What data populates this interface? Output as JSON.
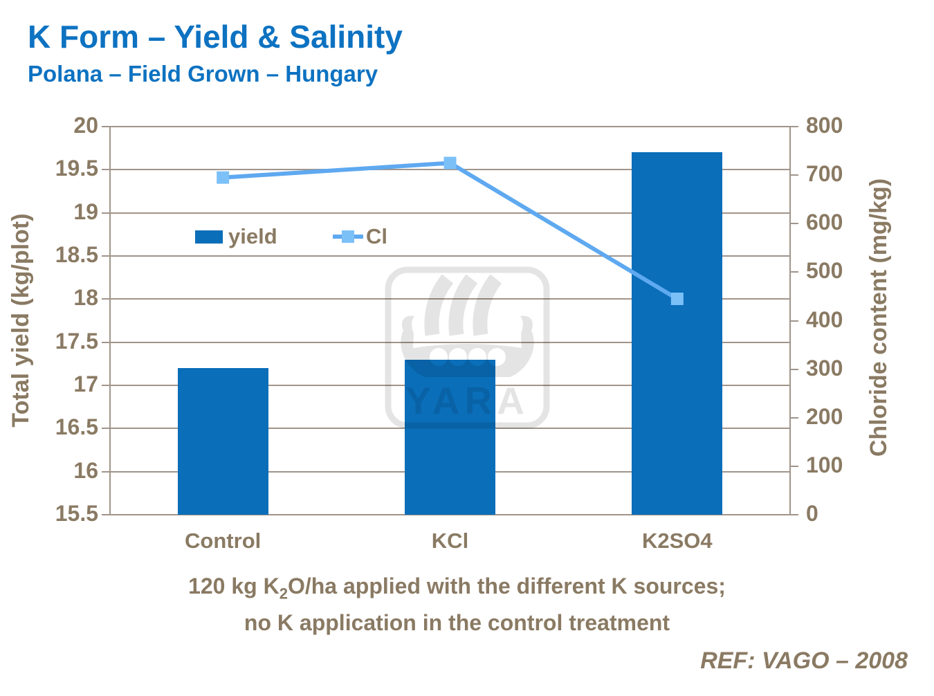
{
  "header": {
    "title": "K Form – Yield & Salinity",
    "subtitle": "Polana – Field Grown – Hungary"
  },
  "chart_data": {
    "type": "bar+line",
    "categories": [
      "Control",
      "KCl",
      "K2SO4"
    ],
    "series": [
      {
        "name": "yield",
        "type": "bar",
        "axis": "left",
        "values": [
          17.2,
          17.3,
          19.7
        ]
      },
      {
        "name": "Cl",
        "type": "line",
        "axis": "right",
        "values": [
          695,
          725,
          445
        ]
      }
    ],
    "left_axis": {
      "label": "Total yield (kg/plot)",
      "min": 15.5,
      "max": 20,
      "step": 0.5,
      "ticks": [
        "20",
        "19.5",
        "19",
        "18.5",
        "18",
        "17.5",
        "17",
        "16.5",
        "16",
        "15.5"
      ]
    },
    "right_axis": {
      "label": "Chloride content (mg/kg)",
      "min": 0,
      "max": 800,
      "step": 100,
      "ticks": [
        "800",
        "700",
        "600",
        "500",
        "400",
        "300",
        "200",
        "100",
        "0"
      ]
    },
    "legend": [
      {
        "label": "yield",
        "type": "bar-swatch"
      },
      {
        "label": "Cl",
        "type": "line-marker"
      }
    ],
    "grid": true,
    "legend_position": "inside-top-left"
  },
  "caption": {
    "line1_pre": "120 kg K",
    "line1_sub": "2",
    "line1_post": "O/ha applied with the different K sources;",
    "line2": "no K application in the control treatment"
  },
  "footer": {
    "ref": "REF: VAGO – 2008"
  },
  "watermark": {
    "icon": "yara-viking-ship-logo",
    "text": "YARA"
  },
  "colors": {
    "title_blue": "#0d72c1",
    "bar_blue": "#0a6eb9",
    "line_blue": "#5ea9f0",
    "marker_blue": "#7cc0f8",
    "text_taupe": "#8a7a63",
    "grid_line": "#a0948a",
    "watermark_gray": "#e4e4e4"
  }
}
